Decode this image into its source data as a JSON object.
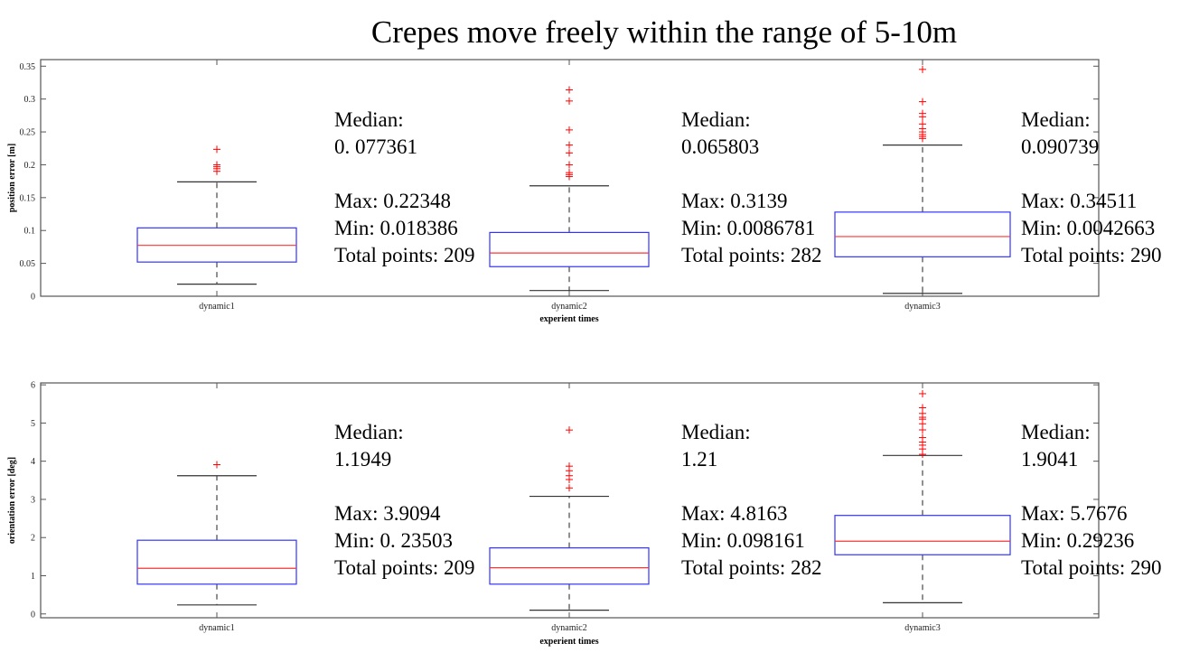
{
  "title": "Crepes move freely within the range of 5-10m",
  "chart_data": [
    {
      "type": "box",
      "xlabel": "experient times",
      "ylabel": "position error [m]",
      "ylim": [
        0,
        0.36
      ],
      "yticks": [
        "0",
        "0.05",
        "0.1",
        "0.15",
        "0.2",
        "0.25",
        "0.3",
        "0.35"
      ],
      "ytick_values": [
        0,
        0.05,
        0.1,
        0.15,
        0.2,
        0.25,
        0.3,
        0.35
      ],
      "categories": [
        "dynamic1",
        "dynamic2",
        "dynamic3"
      ],
      "boxes": [
        {
          "q1": 0.052,
          "median": 0.077361,
          "q3": 0.104,
          "whisker_low": 0.018386,
          "whisker_high": 0.174,
          "outliers": [
            0.22348,
            0.2,
            0.197,
            0.194,
            0.19
          ]
        },
        {
          "q1": 0.045,
          "median": 0.065803,
          "q3": 0.097,
          "whisker_low": 0.0086781,
          "whisker_high": 0.168,
          "outliers": [
            0.3139,
            0.297,
            0.253,
            0.23,
            0.218,
            0.2,
            0.188,
            0.185,
            0.182
          ]
        },
        {
          "q1": 0.06,
          "median": 0.090739,
          "q3": 0.128,
          "whisker_low": 0.0042663,
          "whisker_high": 0.23,
          "outliers": [
            0.34511,
            0.296,
            0.278,
            0.273,
            0.262,
            0.255,
            0.25,
            0.246,
            0.243,
            0.24
          ]
        }
      ],
      "annotations": [
        {
          "median_label": "Median:",
          "median_value": "0. 077361",
          "max": "Max: 0.22348",
          "min": "Min: 0.018386",
          "total": "Total points: 209"
        },
        {
          "median_label": "Median:",
          "median_value": "0.065803",
          "max": "Max: 0.3139",
          "min": "Min: 0.0086781",
          "total": "Total points: 282"
        },
        {
          "median_label": "Median:",
          "median_value": "0.090739",
          "max": "Max: 0.34511",
          "min": "Min: 0.0042663",
          "total": "Total points: 290"
        }
      ],
      "colors": {
        "box": "#3333ff",
        "median": "#ff3333",
        "whisker": "#555555",
        "outlier": "#ff0000"
      }
    },
    {
      "type": "box",
      "xlabel": "experient times",
      "ylabel": "orientation error [deg]",
      "ylim": [
        -0.1,
        6.05
      ],
      "yticks": [
        "0",
        "1",
        "2",
        "3",
        "4",
        "5",
        "6"
      ],
      "ytick_values": [
        0,
        1,
        2,
        3,
        4,
        5,
        6
      ],
      "categories": [
        "dynamic1",
        "dynamic2",
        "dynamic3"
      ],
      "boxes": [
        {
          "q1": 0.78,
          "median": 1.1949,
          "q3": 1.93,
          "whisker_low": 0.23503,
          "whisker_high": 3.62,
          "outliers": [
            3.9094
          ]
        },
        {
          "q1": 0.78,
          "median": 1.21,
          "q3": 1.73,
          "whisker_low": 0.098161,
          "whisker_high": 3.08,
          "outliers": [
            4.8163,
            3.87,
            3.75,
            3.62,
            3.52,
            3.3
          ]
        },
        {
          "q1": 1.55,
          "median": 1.9041,
          "q3": 2.58,
          "whisker_low": 0.29236,
          "whisker_high": 4.15,
          "outliers": [
            5.7676,
            5.4,
            5.25,
            5.15,
            5.1,
            4.98,
            4.82,
            4.62,
            4.5,
            4.42,
            4.32,
            4.18
          ]
        }
      ],
      "annotations": [
        {
          "median_label": "Median:",
          "median_value": "1.1949",
          "max": "Max: 3.9094",
          "min": "Min: 0. 23503",
          "total": "Total points: 209"
        },
        {
          "median_label": "Median:",
          "median_value": "1.21",
          "max": "Max: 4.8163",
          "min": "Min: 0.098161",
          "total": "Total points: 282"
        },
        {
          "median_label": "Median:",
          "median_value": "1.9041",
          "max": "Max: 5.7676",
          "min": "Min: 0.29236",
          "total": "Total points: 290"
        }
      ],
      "colors": {
        "box": "#3333ff",
        "median": "#ff3333",
        "whisker": "#555555",
        "outlier": "#ff0000"
      }
    }
  ]
}
